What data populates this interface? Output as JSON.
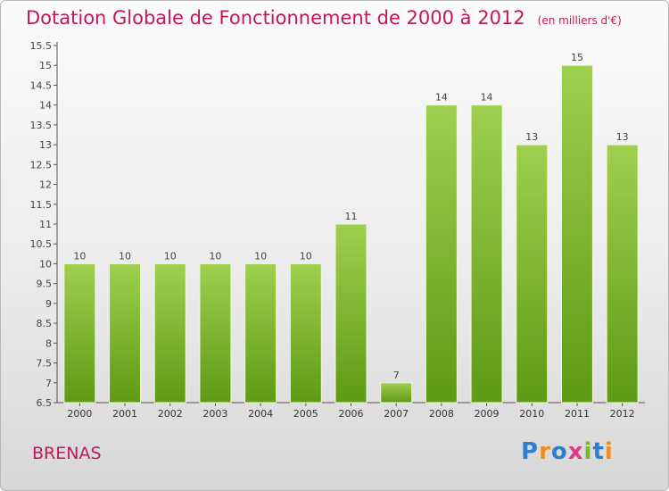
{
  "header": {
    "title": "Dotation Globale de Fonctionnement de 2000 à 2012",
    "unit": "(en milliers d'€)"
  },
  "commune": "BRENAS",
  "logo": {
    "text": "Proxiti",
    "colors": [
      "#2f7fd0",
      "#f08c1a",
      "#2f7fd0",
      "#e0398a",
      "#7cb82f",
      "#2f7fd0",
      "#f08c1a"
    ]
  },
  "colors": {
    "bar_top": "#9ed04e",
    "bar_bottom": "#5e9a14",
    "bar_edge": "#eef6d8",
    "axis": "#555555",
    "grid": "#cccccc"
  },
  "chart_data": {
    "type": "bar",
    "categories": [
      "2000",
      "2001",
      "2002",
      "2003",
      "2004",
      "2005",
      "2006",
      "2007",
      "2008",
      "2009",
      "2010",
      "2011",
      "2012"
    ],
    "values": [
      10,
      10,
      10,
      10,
      10,
      10,
      11,
      7,
      14,
      14,
      13,
      15,
      13
    ],
    "labels": [
      "10",
      "10",
      "10",
      "10",
      "10",
      "10",
      "11",
      "7",
      "14",
      "14",
      "13",
      "15",
      "13"
    ],
    "yticks": [
      6.5,
      7,
      7.5,
      8,
      8.5,
      9,
      9.5,
      10,
      10.5,
      11,
      11.5,
      12,
      12.5,
      13,
      13.5,
      14,
      14.5,
      15,
      15.5
    ],
    "ylim": [
      6.5,
      15.5
    ],
    "xlabel": "",
    "ylabel": "",
    "grid": false
  }
}
